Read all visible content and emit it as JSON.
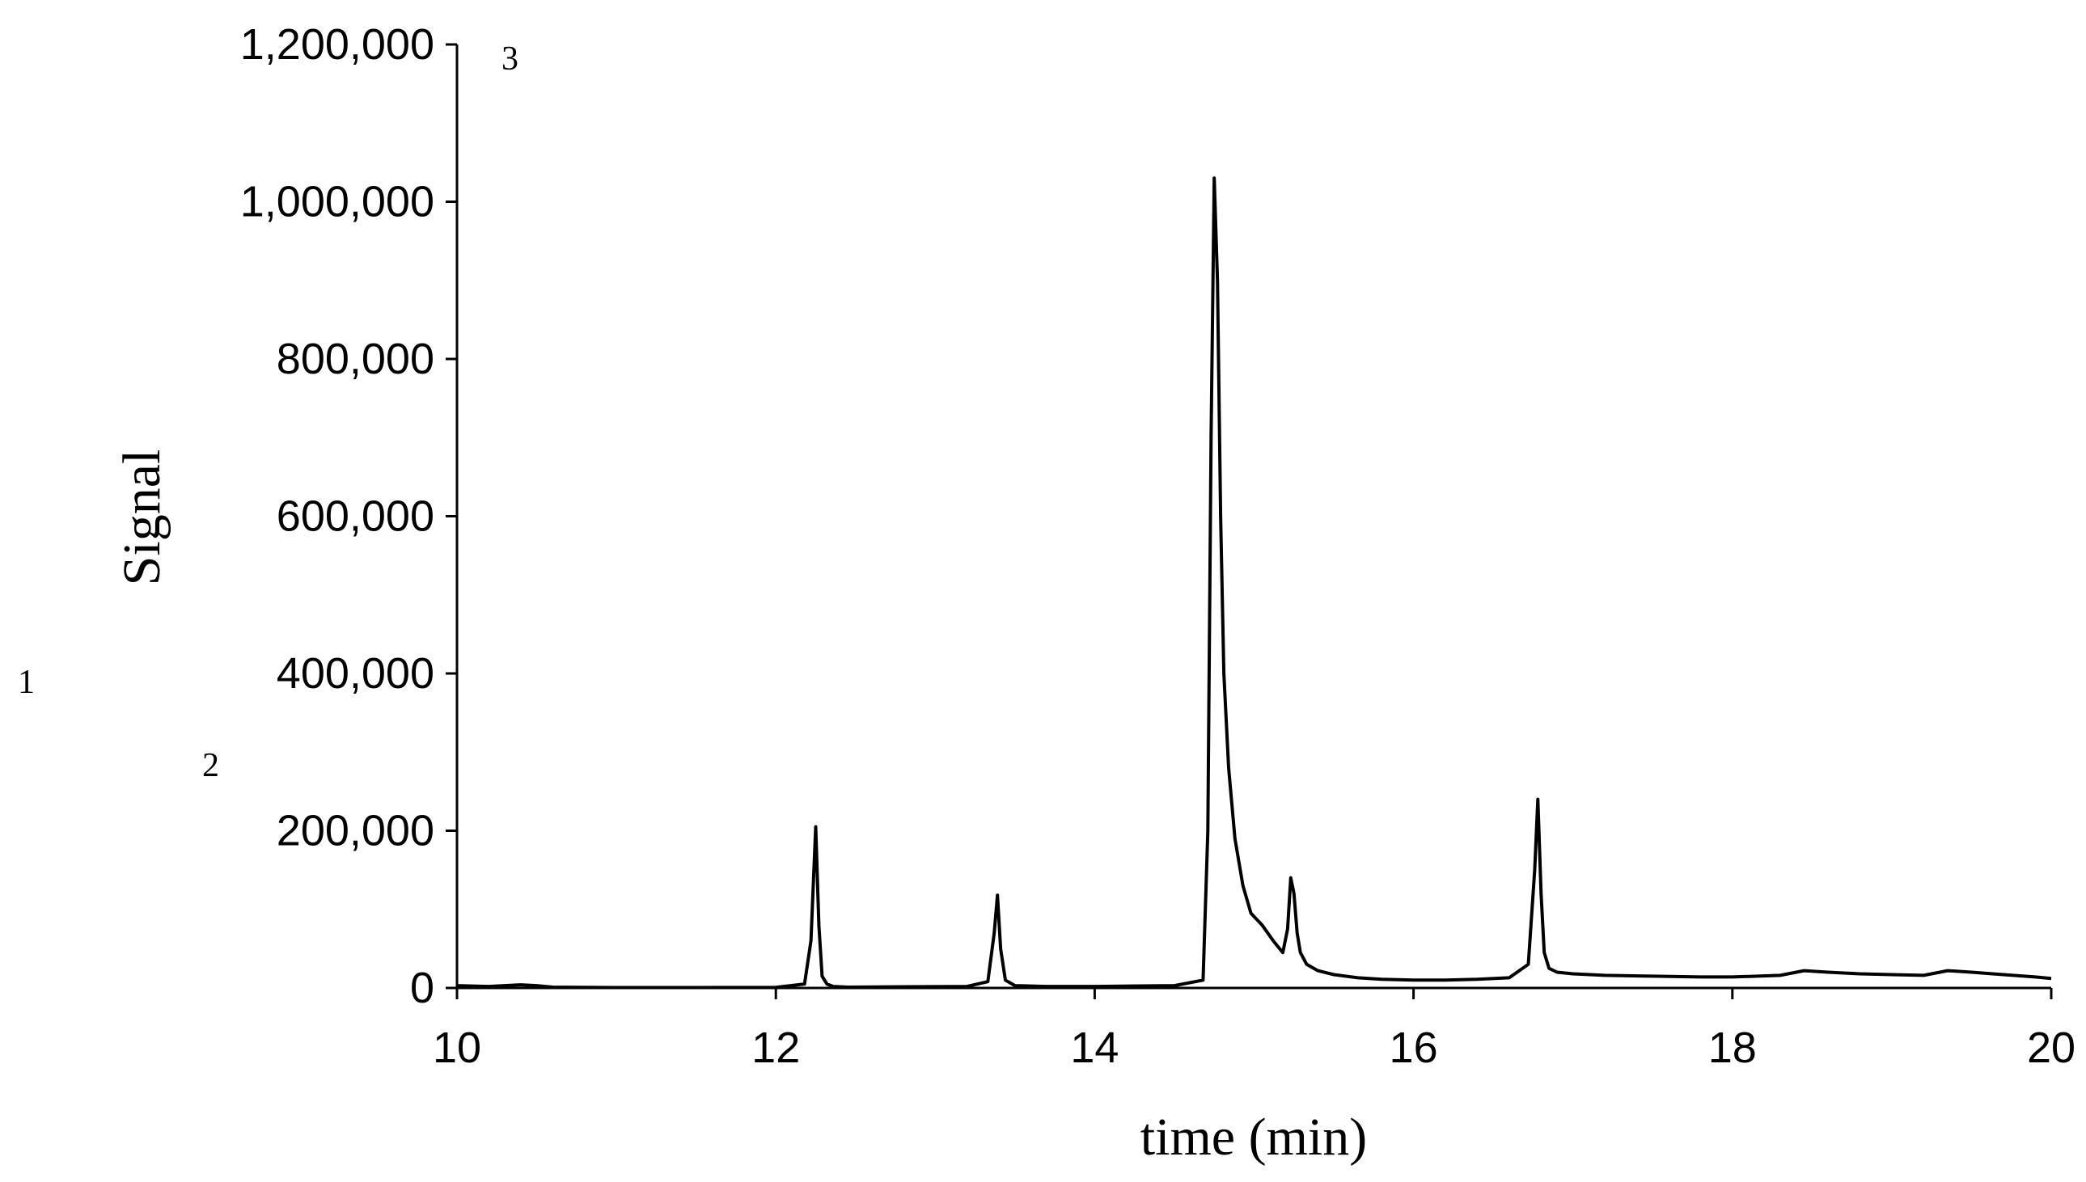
{
  "chart_data": {
    "type": "line",
    "title": "",
    "xlabel": "time (min)",
    "ylabel": "Signal",
    "xlim": [
      10,
      20
    ],
    "ylim": [
      0,
      1200000
    ],
    "x_ticks": [
      10,
      12,
      14,
      16,
      18,
      20
    ],
    "x_tick_labels": [
      "10",
      "12",
      "14",
      "16",
      "18",
      "20"
    ],
    "y_ticks": [
      0,
      200000,
      400000,
      600000,
      800000,
      1000000,
      1200000
    ],
    "y_tick_labels": [
      "0",
      "200,000",
      "400,000",
      "600,000",
      "800,000",
      "1,000,000",
      "1,200,000"
    ],
    "grid": false,
    "legend": "none",
    "line_color": "#000000",
    "annotations": [
      "1",
      "2",
      "3"
    ],
    "series": [
      {
        "x": [
          10.0,
          10.2,
          10.4,
          10.5,
          10.6,
          11.0,
          11.5,
          12.0,
          12.18,
          12.22,
          12.25,
          12.27,
          12.29,
          12.32,
          12.36,
          12.45,
          12.8,
          13.2,
          13.33,
          13.37,
          13.39,
          13.41,
          13.44,
          13.5,
          13.7,
          14.0,
          14.5,
          14.68,
          14.71,
          14.73,
          14.75,
          14.77,
          14.79,
          14.81,
          14.84,
          14.88,
          14.93,
          14.98,
          15.05,
          15.12,
          15.18,
          15.21,
          15.23,
          15.25,
          15.27,
          15.29,
          15.33,
          15.4,
          15.5,
          15.65,
          15.8,
          16.0,
          16.2,
          16.4,
          16.6,
          16.72,
          16.76,
          16.78,
          16.8,
          16.82,
          16.85,
          16.9,
          17.0,
          17.2,
          17.5,
          17.8,
          18.0,
          18.3,
          18.45,
          18.6,
          18.8,
          19.0,
          19.2,
          19.35,
          19.5,
          19.7,
          19.9,
          20.0
        ],
        "y": [
          3000,
          2000,
          4000,
          3000,
          1000,
          500,
          500,
          800,
          5000,
          60000,
          205000,
          80000,
          15000,
          5000,
          2000,
          1000,
          1500,
          2000,
          8000,
          70000,
          118000,
          50000,
          10000,
          3000,
          2000,
          2000,
          3000,
          10000,
          200000,
          700000,
          1030000,
          900000,
          600000,
          400000,
          280000,
          190000,
          130000,
          95000,
          80000,
          60000,
          45000,
          75000,
          140000,
          120000,
          70000,
          45000,
          30000,
          22000,
          17000,
          13000,
          11000,
          10000,
          10000,
          11000,
          13000,
          30000,
          150000,
          240000,
          120000,
          45000,
          25000,
          20000,
          18000,
          16000,
          15000,
          14000,
          14000,
          16000,
          22000,
          20000,
          18000,
          17000,
          16000,
          22000,
          20000,
          17000,
          14000,
          12000
        ]
      }
    ]
  }
}
